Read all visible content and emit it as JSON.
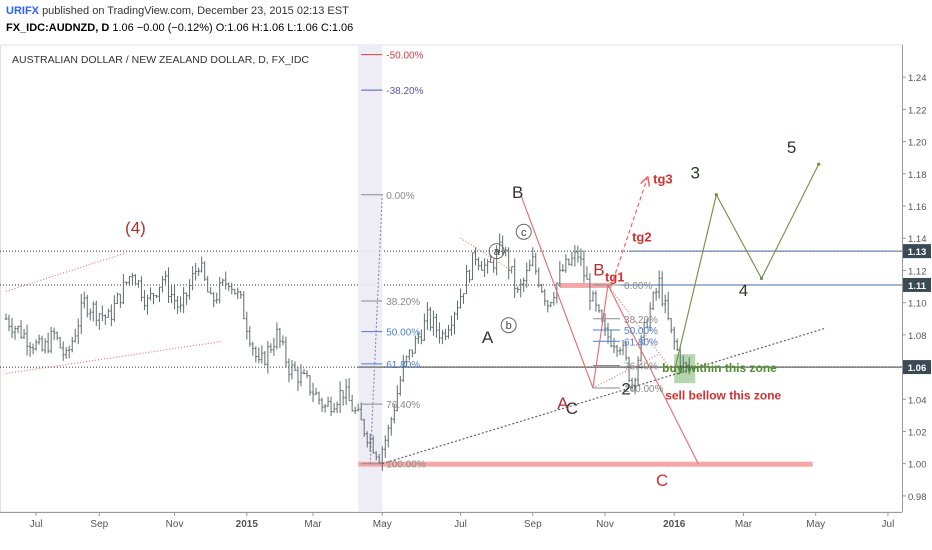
{
  "header": {
    "author": "URIFX",
    "published": "published on TradingView.com, December 23, 2015 02:13 EST",
    "symbol": "FX_IDC:AUDNZD, D",
    "ohlc": "1.06 −0.00 (−0.12%) O:1.06 H:1.06 L:1.06 C:1.06"
  },
  "chart_data": {
    "type": "candlestick",
    "title": "AUSTRALIAN DOLLAR / NEW ZEALAND DOLLAR, D, FX_IDC",
    "ylim": [
      0.97,
      1.26
    ],
    "y_ticks": [
      "1.24",
      "1.22",
      "1.20",
      "1.18",
      "1.16",
      "1.14",
      "1.12",
      "1.10",
      "1.08",
      "1.06",
      "1.04",
      "1.02",
      "1.00",
      "0.98"
    ],
    "x_ticks": [
      "Jul",
      "Sep",
      "Nov",
      "2015",
      "Mar",
      "May",
      "Jul",
      "Sep",
      "Nov",
      "2016",
      "Mar",
      "May",
      "Jul"
    ],
    "price_badges": [
      {
        "label": "1.13",
        "value": 1.132
      },
      {
        "label": "1.11",
        "value": 1.111
      },
      {
        "label": "1.06",
        "value": 1.06
      }
    ],
    "price_path": [
      [
        0,
        1.09
      ],
      [
        6,
        1.08
      ],
      [
        12,
        1.07
      ],
      [
        16,
        1.08
      ],
      [
        20,
        1.065
      ],
      [
        26,
        1.1
      ],
      [
        34,
        1.09
      ],
      [
        42,
        1.12
      ],
      [
        47,
        1.1
      ],
      [
        52,
        1.115
      ],
      [
        58,
        1.095
      ],
      [
        64,
        1.125
      ],
      [
        68,
        1.1
      ],
      [
        74,
        1.115
      ],
      [
        78,
        1.1
      ],
      [
        84,
        1.06
      ],
      [
        90,
        1.08
      ],
      [
        94,
        1.06
      ],
      [
        100,
        1.05
      ],
      [
        106,
        1.035
      ],
      [
        112,
        1.045
      ],
      [
        118,
        1.025
      ],
      [
        124,
        1.005
      ],
      [
        127,
        1.02
      ],
      [
        132,
        1.06
      ],
      [
        136,
        1.075
      ],
      [
        140,
        1.09
      ],
      [
        145,
        1.08
      ],
      [
        150,
        1.1
      ],
      [
        156,
        1.13
      ],
      [
        160,
        1.12
      ],
      [
        165,
        1.135
      ],
      [
        170,
        1.105
      ],
      [
        175,
        1.125
      ],
      [
        180,
        1.1
      ],
      [
        185,
        1.12
      ],
      [
        190,
        1.13
      ],
      [
        195,
        1.1
      ],
      [
        199,
        1.08
      ],
      [
        204,
        1.075
      ],
      [
        208,
        1.05
      ],
      [
        213,
        1.09
      ],
      [
        217,
        1.112
      ],
      [
        221,
        1.08
      ],
      [
        225,
        1.06
      ],
      [
        228,
        1.057
      ]
    ],
    "fibonacci_sets": [
      {
        "levels": [
          {
            "label": "-50.00%",
            "value": 1.254
          },
          {
            "label": "-38.20%",
            "value": 1.232
          },
          {
            "label": "0.00%",
            "value": 1.167
          },
          {
            "label": "38.20%",
            "value": 1.101
          },
          {
            "label": "50.00%",
            "value": 1.082
          },
          {
            "label": "61.80%",
            "value": 1.062
          },
          {
            "label": "76.40%",
            "value": 1.037
          },
          {
            "label": "100.00%",
            "value": 1.0
          }
        ]
      },
      {
        "levels": [
          {
            "label": "0.00%",
            "value": 1.111
          },
          {
            "label": "38.20%",
            "value": 1.09
          },
          {
            "label": "50.00%",
            "value": 1.083
          },
          {
            "label": "61.80%",
            "value": 1.076
          },
          {
            "label": "76.40%",
            "value": 1.061
          },
          {
            "label": "100.00%",
            "value": 1.047
          }
        ]
      }
    ],
    "wave_labels": [
      {
        "text": "(4)",
        "x": 43,
        "y": 1.143
      },
      {
        "text": "A",
        "x": 160,
        "y": 1.075
      },
      {
        "text": "B",
        "x": 170,
        "y": 1.165
      },
      {
        "text": "C",
        "x": 188,
        "y": 1.031
      },
      {
        "text": "A",
        "x": 185,
        "y": 1.034
      },
      {
        "text": "B",
        "x": 197,
        "y": 1.117
      },
      {
        "text": "2",
        "x": 206,
        "y": 1.043
      },
      {
        "text": "3",
        "x": 229,
        "y": 1.177
      },
      {
        "text": "4",
        "x": 245,
        "y": 1.104
      },
      {
        "text": "5",
        "x": 261,
        "y": 1.193
      },
      {
        "text": "C",
        "x": 218,
        "y": 0.986
      }
    ],
    "circled_labels": [
      {
        "text": "a",
        "x": 163,
        "y": 1.132
      },
      {
        "text": "b",
        "x": 167,
        "y": 1.086
      },
      {
        "text": "c",
        "x": 172,
        "y": 1.144
      }
    ],
    "targets": [
      {
        "text": "tg3",
        "x": 215,
        "y": 1.174
      },
      {
        "text": "tg2",
        "x": 208,
        "y": 1.138
      },
      {
        "text": "tg1",
        "x": 199,
        "y": 1.113
      }
    ],
    "zone_notes": [
      {
        "text": "buy within this zone",
        "x": 218,
        "y": 1.057
      },
      {
        "text": "sell bellow this zone",
        "x": 219,
        "y": 1.04
      }
    ]
  }
}
